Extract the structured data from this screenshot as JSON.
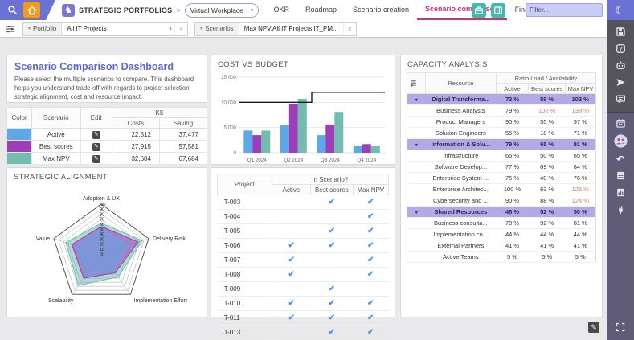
{
  "topbar": {
    "module_title": "STRATEGIC PORTFOLIOS",
    "breadcrumb_separator": ">",
    "workspace_selector": {
      "value": "Virtual Workplace"
    },
    "tabs": [
      {
        "label": "OKR",
        "active": false
      },
      {
        "label": "Roadmap",
        "active": false
      },
      {
        "label": "Scenario creation",
        "active": false
      },
      {
        "label": "Scenario comparison",
        "active": true
      },
      {
        "label": "Financial targets",
        "active": false
      }
    ],
    "more_label": "···",
    "filter": {
      "placeholder": "Filter..."
    },
    "colors": {
      "bar": "#6B72D6",
      "active_tab": "#D62D7D",
      "quick_icon": "#45B8AC",
      "home": "#F5991E"
    }
  },
  "filterbar": {
    "portfolio": {
      "label": "Portfolio",
      "value": "All IT Projects"
    },
    "scenarios": {
      "label": "Scenarios",
      "value": "Max NPV,All IT Projects.IT_PM..."
    }
  },
  "intro": {
    "title": "Scenario Comparison Dashboard",
    "description": "Please select the multiple scenarios to compare. This dashboard helps you understand trade-off with regards to project selection, strategic alignment, cost and resource impact."
  },
  "scenario_table": {
    "headers": {
      "color": "Color",
      "scenario": "Scenario",
      "edit": "Edit",
      "group": "K$",
      "costs": "Costs",
      "saving": "Saving"
    },
    "rows": [
      {
        "scenario": "Active",
        "color": "#5FA8E8",
        "costs": "22,512",
        "saving": "37,477"
      },
      {
        "scenario": "Best scores",
        "color": "#9C3EB8",
        "costs": "27,915",
        "saving": "57,581"
      },
      {
        "scenario": "Max NPV",
        "color": "#72BCB0",
        "costs": "32,684",
        "saving": "67,684"
      }
    ]
  },
  "projects": {
    "header_project": "Project",
    "header_group": "In Scenario?",
    "columns": [
      "Active",
      "Best scores",
      "Max NPV"
    ],
    "rows": [
      {
        "id": "IT-003",
        "checks": [
          false,
          true,
          true
        ]
      },
      {
        "id": "IT-004",
        "checks": [
          false,
          false,
          true
        ]
      },
      {
        "id": "IT-005",
        "checks": [
          false,
          true,
          true
        ]
      },
      {
        "id": "IT-006",
        "checks": [
          true,
          true,
          true
        ]
      },
      {
        "id": "IT-007",
        "checks": [
          true,
          false,
          true
        ]
      },
      {
        "id": "IT-008",
        "checks": [
          true,
          false,
          true
        ]
      },
      {
        "id": "IT-009",
        "checks": [
          false,
          true,
          false
        ]
      },
      {
        "id": "IT-010",
        "checks": [
          true,
          true,
          true
        ]
      },
      {
        "id": "IT-011",
        "checks": [
          true,
          true,
          true
        ]
      },
      {
        "id": "IT-013",
        "checks": [
          false,
          true,
          true
        ]
      }
    ]
  },
  "capacity": {
    "title": "CAPACITY ANALYSIS",
    "header_resource": "Resource",
    "header_group": "Ratio Load / Availability",
    "columns": [
      "Active",
      "Best scores",
      "Max NPV"
    ],
    "group_row_color": "#B3AAE5",
    "overload_color": "#E2736B",
    "rows": [
      {
        "name": "Digital Transforma...",
        "group": true,
        "values": [
          "73 %",
          "59 %",
          "103 %"
        ],
        "red": [
          false,
          false,
          true
        ]
      },
      {
        "name": "Business Analysts",
        "group": false,
        "values": [
          "79 %",
          "102 %",
          "138 %"
        ],
        "red": [
          false,
          true,
          true
        ]
      },
      {
        "name": "Product Managers",
        "group": false,
        "values": [
          "90 %",
          "55 %",
          "97 %"
        ],
        "red": [
          false,
          false,
          false
        ]
      },
      {
        "name": "Solution Engineers",
        "group": false,
        "values": [
          "55 %",
          "18 %",
          "71 %"
        ],
        "red": [
          false,
          false,
          false
        ]
      },
      {
        "name": "Information & Solu...",
        "group": true,
        "values": [
          "79 %",
          "65 %",
          "91 %"
        ],
        "red": [
          false,
          false,
          false
        ]
      },
      {
        "name": "Infrastructure",
        "group": false,
        "values": [
          "65 %",
          "50 %",
          "65 %"
        ],
        "red": [
          false,
          false,
          false
        ]
      },
      {
        "name": "Software Develop...",
        "group": false,
        "values": [
          "77 %",
          "69 %",
          "84 %"
        ],
        "red": [
          false,
          false,
          false
        ]
      },
      {
        "name": "Enterprise System ...",
        "group": false,
        "values": [
          "75 %",
          "40 %",
          "76 %"
        ],
        "red": [
          false,
          false,
          false
        ]
      },
      {
        "name": "Enterprise Architec...",
        "group": false,
        "values": [
          "100 %",
          "63 %",
          "125 %"
        ],
        "red": [
          false,
          false,
          true
        ]
      },
      {
        "name": "Cybersecurity and ...",
        "group": false,
        "values": [
          "90 %",
          "88 %",
          "124 %"
        ],
        "red": [
          false,
          false,
          true
        ]
      },
      {
        "name": "Shared Resources",
        "group": true,
        "values": [
          "48 %",
          "52 %",
          "50 %"
        ],
        "red": [
          false,
          false,
          false
        ]
      },
      {
        "name": "Business consulta...",
        "group": false,
        "values": [
          "70 %",
          "92 %",
          "81 %"
        ],
        "red": [
          false,
          false,
          false
        ]
      },
      {
        "name": "Implementation co...",
        "group": false,
        "values": [
          "44 %",
          "44 %",
          "44 %"
        ],
        "red": [
          false,
          false,
          false
        ]
      },
      {
        "name": "External Partners",
        "group": false,
        "values": [
          "41 %",
          "41 %",
          "41 %"
        ],
        "red": [
          false,
          false,
          false
        ]
      },
      {
        "name": "Active Teams",
        "group": false,
        "values": [
          "5 %",
          "5 %",
          "5 %"
        ],
        "red": [
          false,
          false,
          false
        ]
      }
    ]
  },
  "chart_data": [
    {
      "type": "radar",
      "title": "STRATEGIC ALIGNMENT",
      "axes": [
        "Adoption & UX",
        "Delivery Risk",
        "Implementation Effort",
        "Scalability",
        "Value"
      ],
      "scale": {
        "min": 0,
        "max": 100,
        "step": 10
      },
      "grid": true,
      "legend": "none",
      "series": [
        {
          "name": "Active",
          "color": "#5FA8E8",
          "values": [
            50,
            57,
            42,
            52,
            52
          ]
        },
        {
          "name": "Best scores",
          "color": "#9C3EB8",
          "values": [
            55,
            78,
            47,
            60,
            62
          ]
        },
        {
          "name": "Max NPV",
          "color": "#72BCB0",
          "values": [
            62,
            87,
            57,
            78,
            75
          ]
        }
      ]
    },
    {
      "type": "bar",
      "title": "COST VS BUDGET",
      "categories": [
        "Q1 2024",
        "Q2 2024",
        "Q3 2024",
        "Q4 2024"
      ],
      "series": [
        {
          "name": "Active",
          "color": "#5FA8E8",
          "values": [
            4400,
            5500,
            3500,
            1300
          ]
        },
        {
          "name": "Best scores",
          "color": "#9C3EB8",
          "values": [
            3500,
            9700,
            5600,
            1700
          ]
        },
        {
          "name": "Max NPV",
          "color": "#72BCB0",
          "values": [
            4400,
            10700,
            8100,
            1300
          ]
        }
      ],
      "budget_line": {
        "name": "Budget",
        "color": "#1a1a1a",
        "values": [
          10000,
          10000,
          12000,
          12000
        ]
      },
      "ylim": [
        0,
        15000
      ],
      "yticks": [
        {
          "v": 0,
          "label": "0"
        },
        {
          "v": 5000,
          "label": "5 000"
        },
        {
          "v": 10000,
          "label": "10 000"
        },
        {
          "v": 15000,
          "label": "15 000"
        }
      ],
      "grid": true,
      "legend": "none"
    }
  ],
  "sidebar": {
    "icons": [
      "save",
      "help",
      "robot",
      "send",
      "comment",
      "divider",
      "calendar",
      "team",
      "undo",
      "report-table",
      "report-chart",
      "plug"
    ],
    "bottom_icon": "expand",
    "top_icon": "moon"
  }
}
